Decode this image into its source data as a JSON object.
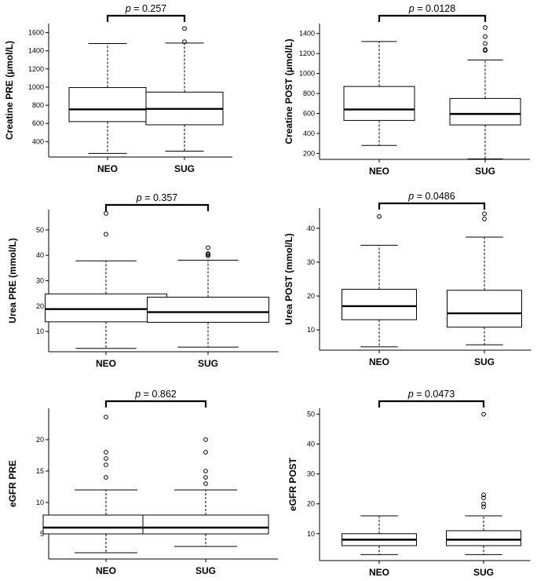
{
  "chart_data": [
    {
      "type": "box",
      "ylabel": "Creatine PRE (µmol/L)",
      "categories": [
        "NEO",
        "SUG"
      ],
      "ylim": [
        230,
        1700
      ],
      "yticks": [
        400,
        600,
        800,
        1000,
        1200,
        1400,
        1600
      ],
      "p_label": "p",
      "p_value": "= 0.257",
      "boxes": [
        {
          "name": "NEO",
          "whisker_low": 270,
          "q1": 620,
          "median": 755,
          "q3": 995,
          "whisker_high": 1480,
          "outliers": []
        },
        {
          "name": "SUG",
          "whisker_low": 295,
          "q1": 585,
          "median": 760,
          "q3": 945,
          "whisker_high": 1485,
          "outliers": [
            1500,
            1645
          ]
        }
      ]
    },
    {
      "type": "box",
      "ylabel": "Creatine POST (µmol/L)",
      "categories": [
        "NEO",
        "SUG"
      ],
      "ylim": [
        140,
        1500
      ],
      "yticks": [
        200,
        400,
        600,
        800,
        1000,
        1200,
        1400
      ],
      "p_label": "p",
      "p_value": "= 0.0128",
      "boxes": [
        {
          "name": "NEO",
          "whisker_low": 280,
          "q1": 530,
          "median": 640,
          "q3": 870,
          "whisker_high": 1320,
          "outliers": []
        },
        {
          "name": "SUG",
          "whisker_low": 145,
          "q1": 485,
          "median": 595,
          "q3": 750,
          "whisker_high": 1135,
          "outliers": [
            1230,
            1240,
            1300,
            1370,
            1460
          ]
        }
      ]
    },
    {
      "type": "box",
      "ylabel": "Urea PRE (mmol/L)",
      "categories": [
        "NEO",
        "SUG"
      ],
      "ylim": [
        2,
        58
      ],
      "yticks": [
        10,
        20,
        30,
        40,
        50
      ],
      "p_label": "p",
      "p_value": "= 0.357",
      "boxes": [
        {
          "name": "NEO",
          "whisker_low": 3.3,
          "q1": 13.8,
          "median": 18.8,
          "q3": 24.8,
          "whisker_high": 37.8,
          "outliers": [
            48.3,
            56.5
          ]
        },
        {
          "name": "SUG",
          "whisker_low": 3.8,
          "q1": 13.6,
          "median": 17.6,
          "q3": 23.5,
          "whisker_high": 38.1,
          "outliers": [
            39.8,
            40.3,
            40.7,
            43
          ]
        }
      ]
    },
    {
      "type": "box",
      "ylabel": "Urea POST (mmol/L)",
      "categories": [
        "NEO",
        "SUG"
      ],
      "ylim": [
        4,
        46
      ],
      "yticks": [
        10,
        20,
        30,
        40
      ],
      "p_label": "p",
      "p_value": "= 0.0486",
      "boxes": [
        {
          "name": "NEO",
          "whisker_low": 5,
          "q1": 13,
          "median": 17,
          "q3": 22,
          "whisker_high": 35,
          "outliers": [
            43.5
          ]
        },
        {
          "name": "SUG",
          "whisker_low": 5.6,
          "q1": 10.8,
          "median": 14.9,
          "q3": 21.7,
          "whisker_high": 37.4,
          "outliers": [
            42.8,
            44.3
          ]
        }
      ]
    },
    {
      "type": "box",
      "ylabel": "eGFR PRE",
      "categories": [
        "NEO",
        "SUG"
      ],
      "ylim": [
        1,
        25
      ],
      "yticks": [
        5,
        10,
        15,
        20
      ],
      "p_label": "p",
      "p_value": "= 0.862",
      "boxes": [
        {
          "name": "NEO",
          "whisker_low": 2,
          "q1": 5,
          "median": 6,
          "q3": 8,
          "whisker_high": 12,
          "outliers": [
            14,
            16,
            17,
            18,
            23.6
          ]
        },
        {
          "name": "SUG",
          "whisker_low": 3,
          "q1": 5,
          "median": 6,
          "q3": 8,
          "whisker_high": 12,
          "outliers": [
            13,
            14,
            15,
            18,
            20
          ]
        }
      ]
    },
    {
      "type": "box",
      "ylabel": "eGFR POST",
      "categories": [
        "NEO",
        "SUG"
      ],
      "ylim": [
        1,
        52
      ],
      "yticks": [
        10,
        20,
        30,
        40,
        50
      ],
      "p_label": "p",
      "p_value": "= 0.0473",
      "boxes": [
        {
          "name": "NEO",
          "whisker_low": 3,
          "q1": 6,
          "median": 8,
          "q3": 10,
          "whisker_high": 16,
          "outliers": []
        },
        {
          "name": "SUG",
          "whisker_low": 3,
          "q1": 6,
          "median": 8,
          "q3": 11,
          "whisker_high": 16,
          "outliers": [
            19,
            20,
            22,
            23,
            50
          ]
        }
      ]
    }
  ]
}
